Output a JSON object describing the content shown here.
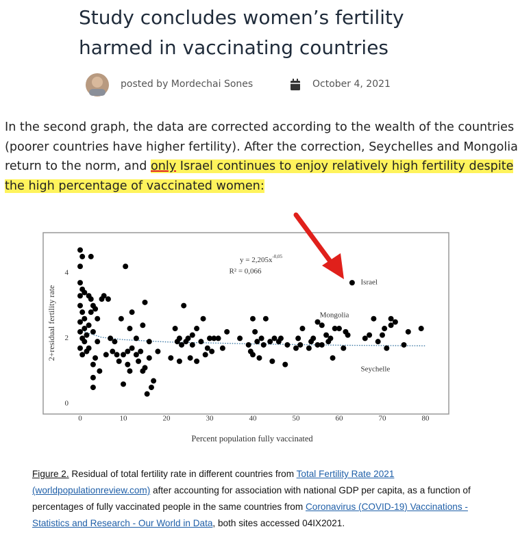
{
  "header": {
    "title": "Study concludes women’s fertility harmed in vaccinating countries",
    "author": "posted by Mordechai Sones",
    "date": "October 4, 2021"
  },
  "paragraph": {
    "text": "In the second graph, the data are corrected according to the wealth of the countries (poorer countries have higher fertility). After the correction, Seychelles and Mongolia return to the norm, and ",
    "highlight_underlined": "only",
    "highlight": " Israel continues to enjoy relatively high fertility despite the high percentage of vaccinated women:"
  },
  "chart_data": {
    "type": "scatter",
    "x_label": "Percent population fully vaccinated",
    "y_label": "2+residual fertility rate",
    "equation": "y = 2,205x",
    "equation_exponent": "-0,05",
    "r_squared": "R² = 0,066",
    "color": "#000000",
    "xlim": [
      0,
      80
    ],
    "ylim": [
      0,
      5
    ],
    "xticks": [
      0,
      10,
      20,
      30,
      40,
      50,
      60,
      70,
      80
    ],
    "yticks": [
      0,
      2,
      4
    ],
    "x": [
      0,
      0.5,
      0,
      0,
      0.5,
      0,
      1,
      0,
      0.5,
      1,
      0,
      1,
      0,
      0.5,
      1,
      0,
      0.5,
      1.5,
      2,
      1.5,
      2,
      2.5,
      2.5,
      3,
      3.5,
      4,
      3,
      3,
      3.5,
      4.5,
      3,
      2.5,
      2,
      3,
      4,
      5,
      5.5,
      6.5,
      7,
      6,
      7.5,
      8,
      8.5,
      9,
      9.5,
      10,
      10,
      10.5,
      11,
      11,
      11.5,
      11.5,
      12,
      12,
      13,
      13,
      13.5,
      14,
      14.5,
      14.5,
      15,
      15,
      15.5,
      16,
      16,
      17,
      16.5,
      18,
      21,
      22,
      22.5,
      23,
      23,
      23.5,
      24,
      24.5,
      25,
      25.5,
      26,
      26,
      27,
      27,
      28,
      28.5,
      29,
      29.5,
      30,
      30.5,
      31,
      32,
      33,
      34,
      37,
      39,
      39.5,
      40,
      40,
      40.5,
      41,
      41.5,
      42,
      42.5,
      43,
      44,
      44.5,
      45,
      46,
      46.5,
      47.5,
      48,
      50,
      50.5,
      51,
      51.5,
      53,
      53.5,
      54,
      55,
      55,
      56,
      56,
      57,
      57.5,
      58,
      58.5,
      59,
      60,
      61,
      61.5,
      62,
      63,
      66,
      67,
      68,
      69,
      70,
      70.5,
      71,
      72,
      72,
      73,
      75,
      76,
      79
    ],
    "values": [
      4.7,
      4.5,
      4.2,
      3.7,
      3.5,
      3.3,
      3.4,
      3.0,
      2.8,
      2.6,
      2.5,
      2.3,
      2.2,
      2.0,
      1.9,
      1.7,
      1.5,
      1.6,
      1.7,
      2.1,
      2.4,
      3.2,
      4.5,
      3.0,
      2.9,
      2.6,
      1.2,
      0.8,
      1.4,
      1.0,
      0.5,
      2.8,
      3.3,
      2.2,
      1.9,
      3.2,
      3.3,
      3.2,
      2.0,
      1.5,
      1.6,
      1.9,
      1.5,
      1.3,
      2.6,
      1.5,
      0.6,
      4.2,
      1.6,
      1.2,
      1.0,
      2.3,
      2.8,
      1.7,
      1.5,
      2.0,
      1.3,
      1.6,
      1.0,
      2.4,
      1.1,
      3.1,
      0.3,
      1.4,
      1.9,
      0.7,
      0.5,
      1.6,
      1.4,
      2.3,
      1.9,
      2.0,
      1.3,
      1.8,
      3.0,
      1.9,
      2.0,
      1.4,
      2.1,
      1.8,
      2.3,
      1.3,
      1.9,
      2.6,
      1.5,
      1.7,
      2.0,
      1.6,
      2.0,
      2.0,
      1.7,
      2.2,
      2.0,
      1.8,
      1.6,
      2.6,
      1.5,
      2.2,
      1.9,
      1.4,
      2.0,
      1.8,
      2.6,
      1.9,
      1.3,
      2.0,
      1.9,
      2.0,
      1.2,
      1.8,
      1.7,
      2.0,
      1.8,
      2.3,
      1.7,
      1.9,
      2.0,
      1.8,
      2.5,
      2.4,
      1.8,
      2.1,
      1.9,
      2.0,
      1.4,
      2.3,
      2.3,
      1.7,
      2.2,
      2.1,
      3.7,
      2.0,
      2.1,
      2.6,
      1.9,
      2.1,
      2.3,
      1.7,
      2.4,
      2.6,
      2.5,
      1.8,
      2.2,
      2.3
    ],
    "trendline": {
      "color": "#2e6f9e",
      "x": [
        1,
        5,
        10,
        20,
        40,
        60,
        80
      ],
      "values": [
        2.2,
        2.03,
        1.96,
        1.89,
        1.83,
        1.79,
        1.77
      ]
    },
    "annotations": [
      {
        "text": "Israel",
        "x": 65,
        "y": 3.7
      },
      {
        "text": "Mongolia",
        "x": 55.5,
        "y": 2.7
      },
      {
        "text": "Seychelle",
        "x": 65,
        "y": 1.05
      }
    ]
  },
  "caption": {
    "label": "Figure 2.",
    "text1": " Residual of total fertility rate in different countries from ",
    "link1": "Total Fertility Rate 2021 (worldpopulationreview.com)",
    "text2": "  after accounting for association with national GDP per capita, as a function of percentages of fully vaccinated people in the same countries from ",
    "link2": "Coronavirus (COVID-19) Vaccinations - Statistics and Research - Our World in Data",
    "text3": ", both sites accessed 04IX2021."
  }
}
